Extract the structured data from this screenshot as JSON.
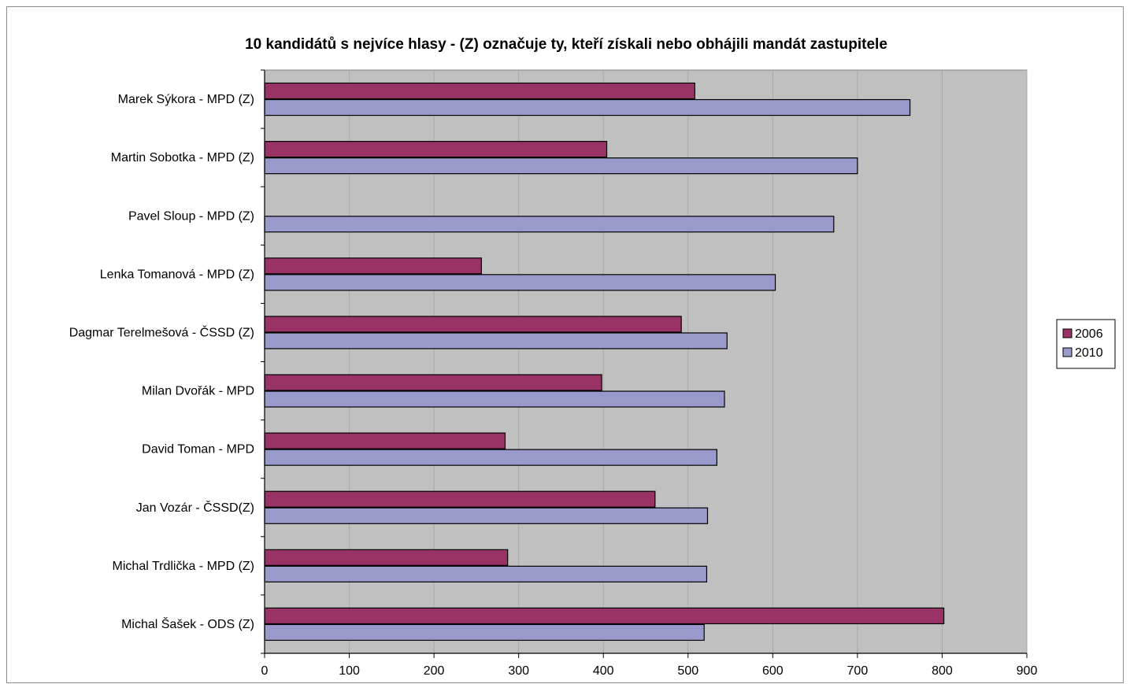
{
  "chart_data": {
    "type": "bar",
    "orientation": "horizontal",
    "title": "10 kandidátů s nejvíce hlasy - (Z) označuje ty, kteří získali nebo obhájili mandát zastupitele",
    "xlabel": "",
    "ylabel": "",
    "xlim": [
      0,
      900
    ],
    "xticks": [
      0,
      100,
      200,
      300,
      400,
      500,
      600,
      700,
      800,
      900
    ],
    "grid": true,
    "legend_position": "right",
    "plot_background": "#c0c0c0",
    "categories": [
      "Marek Sýkora - MPD (Z)",
      "Martin Sobotka - MPD (Z)",
      "Pavel Sloup - MPD (Z)",
      "Lenka Tomanová - MPD (Z)",
      "Dagmar Terelmešová - ČSSD (Z)",
      "Milan Dvořák - MPD",
      "David Toman - MPD",
      "Jan Vozár - ČSSD(Z)",
      "Michal Trdlička - MPD (Z)",
      "Michal Šašek - ODS (Z)"
    ],
    "series": [
      {
        "name": "2006",
        "color": "#993366",
        "values": [
          508,
          404,
          0,
          256,
          492,
          398,
          284,
          461,
          287,
          802
        ]
      },
      {
        "name": "2010",
        "color": "#9999cc",
        "values": [
          762,
          700,
          672,
          603,
          546,
          543,
          534,
          523,
          522,
          519
        ]
      }
    ]
  }
}
